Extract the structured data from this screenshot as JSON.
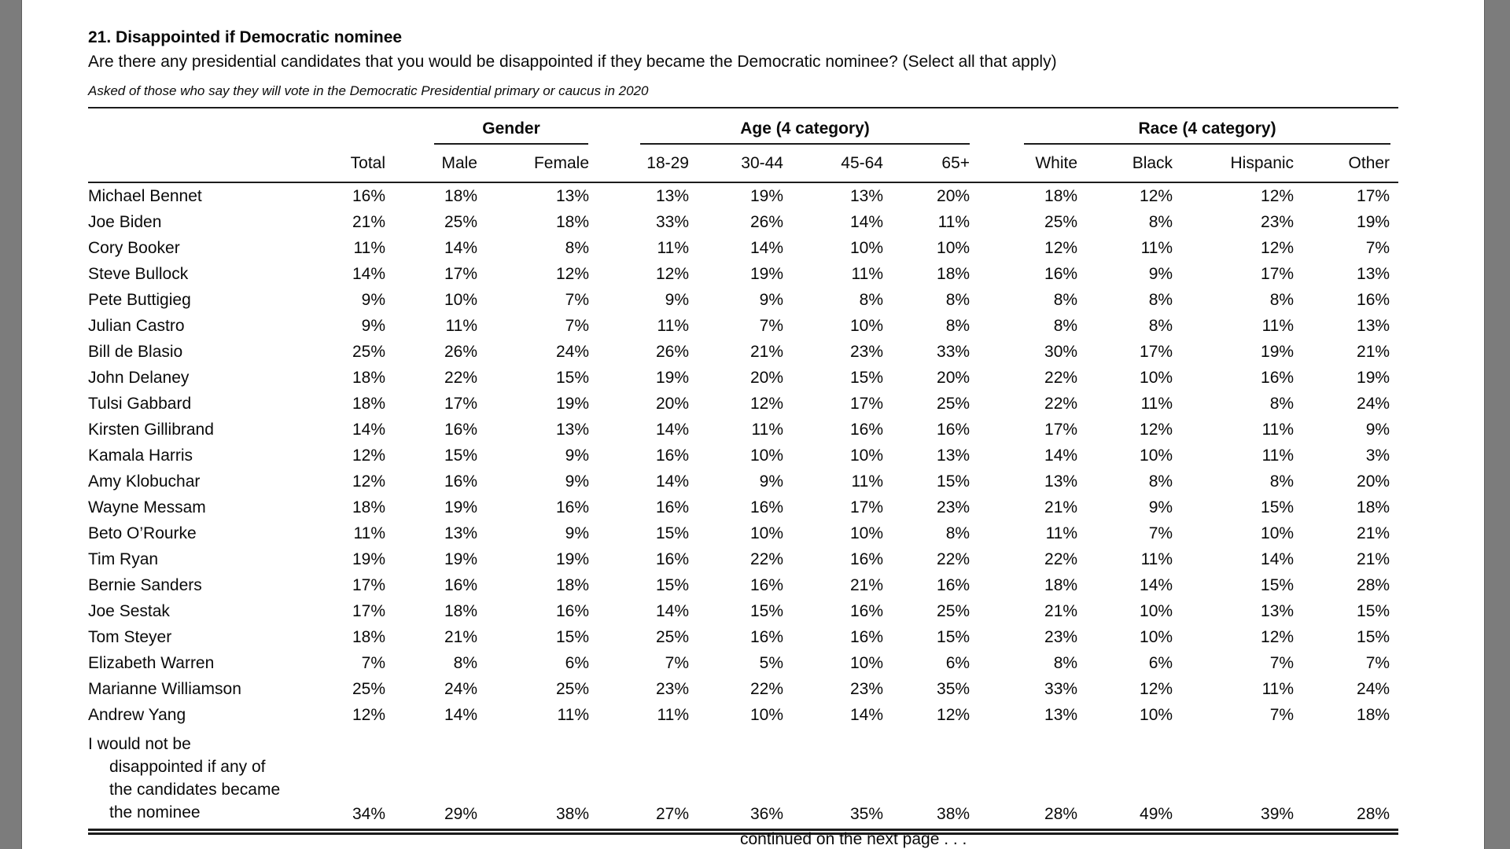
{
  "document": {
    "title": "21. Disappointed if Democratic nominee",
    "question": "Are there any presidential candidates that you would be disappointed if they became the Democratic nominee? (Select all that apply)",
    "note": "Asked of those who say they will vote in the Democratic Presidential primary or caucus in 2020",
    "footer": "continued on the next page . . ."
  },
  "table": {
    "group_headers": [
      {
        "label": "Gender",
        "columns": 2
      },
      {
        "label": "Age (4 category)",
        "columns": 4
      },
      {
        "label": "Race (4 category)",
        "columns": 4
      }
    ],
    "column_headers": [
      "Total",
      "Male",
      "Female",
      "18-29",
      "30-44",
      "45-64",
      "65+",
      "White",
      "Black",
      "Hispanic",
      "Other"
    ],
    "rows": [
      {
        "label_lines": [
          "Michael Bennet"
        ],
        "values": [
          "16%",
          "18%",
          "13%",
          "13%",
          "19%",
          "13%",
          "20%",
          "18%",
          "12%",
          "12%",
          "17%"
        ]
      },
      {
        "label_lines": [
          "Joe Biden"
        ],
        "values": [
          "21%",
          "25%",
          "18%",
          "33%",
          "26%",
          "14%",
          "11%",
          "25%",
          "8%",
          "23%",
          "19%"
        ]
      },
      {
        "label_lines": [
          "Cory Booker"
        ],
        "values": [
          "11%",
          "14%",
          "8%",
          "11%",
          "14%",
          "10%",
          "10%",
          "12%",
          "11%",
          "12%",
          "7%"
        ]
      },
      {
        "label_lines": [
          "Steve Bullock"
        ],
        "values": [
          "14%",
          "17%",
          "12%",
          "12%",
          "19%",
          "11%",
          "18%",
          "16%",
          "9%",
          "17%",
          "13%"
        ]
      },
      {
        "label_lines": [
          "Pete Buttigieg"
        ],
        "values": [
          "9%",
          "10%",
          "7%",
          "9%",
          "9%",
          "8%",
          "8%",
          "8%",
          "8%",
          "8%",
          "16%"
        ]
      },
      {
        "label_lines": [
          "Julian Castro"
        ],
        "values": [
          "9%",
          "11%",
          "7%",
          "11%",
          "7%",
          "10%",
          "8%",
          "8%",
          "8%",
          "11%",
          "13%"
        ]
      },
      {
        "label_lines": [
          "Bill de Blasio"
        ],
        "values": [
          "25%",
          "26%",
          "24%",
          "26%",
          "21%",
          "23%",
          "33%",
          "30%",
          "17%",
          "19%",
          "21%"
        ]
      },
      {
        "label_lines": [
          "John Delaney"
        ],
        "values": [
          "18%",
          "22%",
          "15%",
          "19%",
          "20%",
          "15%",
          "20%",
          "22%",
          "10%",
          "16%",
          "19%"
        ]
      },
      {
        "label_lines": [
          "Tulsi Gabbard"
        ],
        "values": [
          "18%",
          "17%",
          "19%",
          "20%",
          "12%",
          "17%",
          "25%",
          "22%",
          "11%",
          "8%",
          "24%"
        ]
      },
      {
        "label_lines": [
          "Kirsten Gillibrand"
        ],
        "values": [
          "14%",
          "16%",
          "13%",
          "14%",
          "11%",
          "16%",
          "16%",
          "17%",
          "12%",
          "11%",
          "9%"
        ]
      },
      {
        "label_lines": [
          "Kamala Harris"
        ],
        "values": [
          "12%",
          "15%",
          "9%",
          "16%",
          "10%",
          "10%",
          "13%",
          "14%",
          "10%",
          "11%",
          "3%"
        ]
      },
      {
        "label_lines": [
          "Amy Klobuchar"
        ],
        "values": [
          "12%",
          "16%",
          "9%",
          "14%",
          "9%",
          "11%",
          "15%",
          "13%",
          "8%",
          "8%",
          "20%"
        ]
      },
      {
        "label_lines": [
          "Wayne Messam"
        ],
        "values": [
          "18%",
          "19%",
          "16%",
          "16%",
          "16%",
          "17%",
          "23%",
          "21%",
          "9%",
          "15%",
          "18%"
        ]
      },
      {
        "label_lines": [
          "Beto O’Rourke"
        ],
        "values": [
          "11%",
          "13%",
          "9%",
          "15%",
          "10%",
          "10%",
          "8%",
          "11%",
          "7%",
          "10%",
          "21%"
        ]
      },
      {
        "label_lines": [
          "Tim Ryan"
        ],
        "values": [
          "19%",
          "19%",
          "19%",
          "16%",
          "22%",
          "16%",
          "22%",
          "22%",
          "11%",
          "14%",
          "21%"
        ]
      },
      {
        "label_lines": [
          "Bernie Sanders"
        ],
        "values": [
          "17%",
          "16%",
          "18%",
          "15%",
          "16%",
          "21%",
          "16%",
          "18%",
          "14%",
          "15%",
          "28%"
        ]
      },
      {
        "label_lines": [
          "Joe Sestak"
        ],
        "values": [
          "17%",
          "18%",
          "16%",
          "14%",
          "15%",
          "16%",
          "25%",
          "21%",
          "10%",
          "13%",
          "15%"
        ]
      },
      {
        "label_lines": [
          "Tom Steyer"
        ],
        "values": [
          "18%",
          "21%",
          "15%",
          "25%",
          "16%",
          "16%",
          "15%",
          "23%",
          "10%",
          "12%",
          "15%"
        ]
      },
      {
        "label_lines": [
          "Elizabeth Warren"
        ],
        "values": [
          "7%",
          "8%",
          "6%",
          "7%",
          "5%",
          "10%",
          "6%",
          "8%",
          "6%",
          "7%",
          "7%"
        ]
      },
      {
        "label_lines": [
          "Marianne Williamson"
        ],
        "values": [
          "25%",
          "24%",
          "25%",
          "23%",
          "22%",
          "23%",
          "35%",
          "33%",
          "12%",
          "11%",
          "24%"
        ]
      },
      {
        "label_lines": [
          "Andrew Yang"
        ],
        "values": [
          "12%",
          "14%",
          "11%",
          "11%",
          "10%",
          "14%",
          "12%",
          "13%",
          "10%",
          "7%",
          "18%"
        ]
      },
      {
        "label_lines": [
          "I would not be",
          "disappointed if any of",
          "the candidates became",
          "the nominee"
        ],
        "values": [
          "34%",
          "29%",
          "38%",
          "27%",
          "36%",
          "35%",
          "38%",
          "28%",
          "49%",
          "39%",
          "28%"
        ]
      }
    ]
  }
}
